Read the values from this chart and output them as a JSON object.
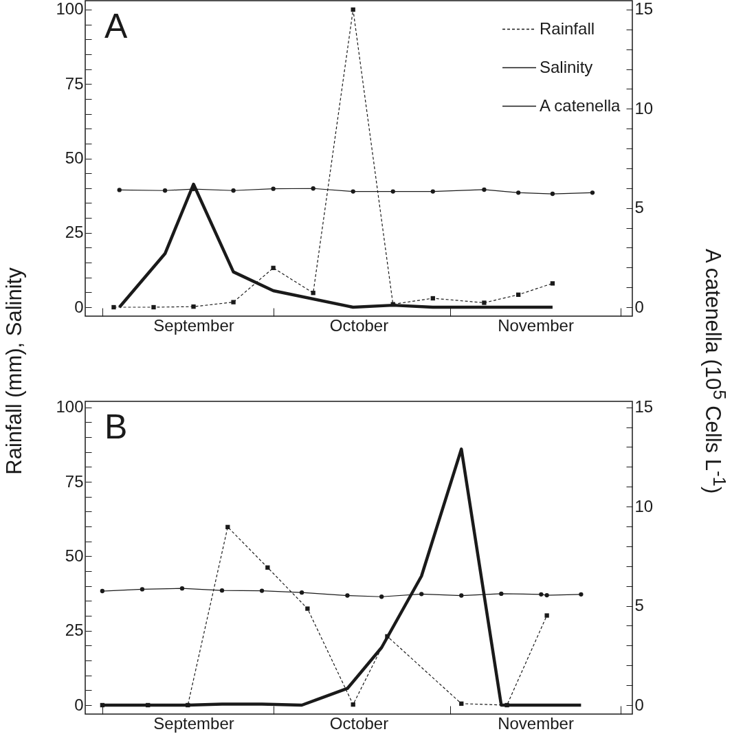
{
  "chart_data": [
    {
      "type": "line",
      "title": "A",
      "ylabel": "Rainfall (mm), Salinity",
      "y2label": "A catenella (10$^{5}$ Cells L$^{-1}$)",
      "legend": "top right",
      "xlim": [
        "--08-29",
        "--12-03"
      ],
      "xticks": [
        {
          "value": "--09-01",
          "label": null
        },
        {
          "value": "--09-17",
          "label": "September"
        },
        {
          "value": "--10-01",
          "label": null
        },
        {
          "value": "--10-16",
          "label": "October"
        },
        {
          "value": "--11-01",
          "label": null
        },
        {
          "value": "--11-16",
          "label": "November"
        },
        {
          "value": "--12-01",
          "label": null
        }
      ],
      "ylim": [
        -3,
        103
      ],
      "yticks": [
        0,
        {
          "value": 5,
          "label": null
        },
        {
          "value": 10,
          "label": null
        },
        {
          "value": 15,
          "label": null
        },
        {
          "value": 20,
          "label": null
        },
        25,
        {
          "value": 30,
          "label": null
        },
        {
          "value": 35,
          "label": null
        },
        {
          "value": 40,
          "label": null
        },
        {
          "value": 45,
          "label": null
        },
        50,
        {
          "value": 55,
          "label": null
        },
        {
          "value": 60,
          "label": null
        },
        {
          "value": 65,
          "label": null
        },
        {
          "value": 70,
          "label": null
        },
        75,
        {
          "value": 80,
          "label": null
        },
        {
          "value": 85,
          "label": null
        },
        {
          "value": 90,
          "label": null
        },
        {
          "value": 95,
          "label": null
        },
        100
      ],
      "y2lim": [
        -0.45,
        15.45
      ],
      "y2ticks": [
        0,
        {
          "value": 1,
          "label": null
        },
        {
          "value": 2,
          "label": null
        },
        {
          "value": 3,
          "label": null
        },
        {
          "value": 4,
          "label": null
        },
        5,
        {
          "value": 6,
          "label": null
        },
        {
          "value": 7,
          "label": null
        },
        {
          "value": 8,
          "label": null
        },
        {
          "value": 9,
          "label": null
        },
        10,
        {
          "value": 11,
          "label": null
        },
        {
          "value": 12,
          "label": null
        },
        {
          "value": 13,
          "label": null
        },
        {
          "value": 14,
          "label": null
        },
        15
      ],
      "series": [
        {
          "name": "Rainfall",
          "color": "#1a1a1a",
          "marker": "square",
          "line_style": "dashed",
          "x": [
            "--09-03",
            "--09-10",
            "--09-17",
            "--09-24",
            "--10-01",
            "--10-08",
            "--10-15",
            "--10-22",
            "--10-29",
            "--11-07",
            "--11-13",
            "--11-19"
          ],
          "values": [
            0,
            0,
            0.2,
            1.7,
            13.2,
            4.8,
            100,
            1.0,
            3.0,
            1.5,
            4.2,
            8.0
          ]
        },
        {
          "name": "Salinity",
          "color": "#1a1a1a",
          "marker": "circle",
          "line_style": "solid",
          "x": [
            "--09-04",
            "--09-12",
            "--09-17",
            "--09-24",
            "--10-01",
            "--10-08",
            "--10-15",
            "--10-22",
            "--10-29",
            "--11-07",
            "--11-13",
            "--11-19",
            "--11-26"
          ],
          "values": [
            39.4,
            39.2,
            39.7,
            39.2,
            39.8,
            39.9,
            38.9,
            38.9,
            38.9,
            39.5,
            38.5,
            38.1,
            38.5
          ]
        },
        {
          "name": "A catenella",
          "color": "#1a1a1a",
          "marker": "none",
          "line_style": "solid",
          "axis": "y2",
          "x": [
            "--09-04",
            "--09-12",
            "--09-17",
            "--09-24",
            "--10-01",
            "--10-15",
            "--10-22",
            "--10-29",
            "--11-19"
          ],
          "values": [
            0,
            2.7,
            6.2,
            1.78,
            0.83,
            0,
            0.1,
            0,
            0
          ]
        }
      ]
    },
    {
      "type": "line",
      "title": "B",
      "legend": false,
      "xlim": [
        "--08-29",
        "--12-03"
      ],
      "xticks": [
        {
          "value": "--09-01",
          "label": null
        },
        {
          "value": "--09-17",
          "label": "September"
        },
        {
          "value": "--10-01",
          "label": null
        },
        {
          "value": "--10-16",
          "label": "October"
        },
        {
          "value": "--11-01",
          "label": null
        },
        {
          "value": "--11-16",
          "label": "November"
        },
        {
          "value": "--12-01",
          "label": null
        }
      ],
      "ylim": [
        -3,
        102
      ],
      "yticks": [
        0,
        {
          "value": 5,
          "label": null
        },
        {
          "value": 10,
          "label": null
        },
        {
          "value": 15,
          "label": null
        },
        {
          "value": 20,
          "label": null
        },
        25,
        {
          "value": 30,
          "label": null
        },
        {
          "value": 35,
          "label": null
        },
        {
          "value": 40,
          "label": null
        },
        {
          "value": 45,
          "label": null
        },
        50,
        {
          "value": 55,
          "label": null
        },
        {
          "value": 60,
          "label": null
        },
        {
          "value": 65,
          "label": null
        },
        {
          "value": 70,
          "label": null
        },
        75,
        {
          "value": 80,
          "label": null
        },
        {
          "value": 85,
          "label": null
        },
        {
          "value": 90,
          "label": null
        },
        {
          "value": 95,
          "label": null
        },
        100
      ],
      "y2lim": [
        -0.45,
        15.3
      ],
      "y2ticks": [
        0,
        {
          "value": 1,
          "label": null
        },
        {
          "value": 2,
          "label": null
        },
        {
          "value": 3,
          "label": null
        },
        {
          "value": 4,
          "label": null
        },
        5,
        {
          "value": 6,
          "label": null
        },
        {
          "value": 7,
          "label": null
        },
        {
          "value": 8,
          "label": null
        },
        {
          "value": 9,
          "label": null
        },
        10,
        {
          "value": 11,
          "label": null
        },
        {
          "value": 12,
          "label": null
        },
        {
          "value": 13,
          "label": null
        },
        {
          "value": 14,
          "label": null
        },
        15
      ],
      "series": [
        {
          "color": "#1a1a1a",
          "marker": "square",
          "line_style": "dashed",
          "x": [
            "--09-01",
            "--09-09",
            "--09-16",
            "--09-23",
            "--09-30",
            "--10-07",
            "--10-15",
            "--10-21",
            "--11-03",
            "--11-11",
            "--11-18"
          ],
          "values": [
            0,
            0,
            0,
            59.8,
            46.2,
            32.4,
            0.2,
            23.1,
            0.5,
            0,
            30.1
          ]
        },
        {
          "color": "#1a1a1a",
          "marker": "circle",
          "line_style": "solid",
          "x": [
            "--09-01",
            "--09-08",
            "--09-15",
            "--09-22",
            "--09-29",
            "--10-06",
            "--10-14",
            "--10-20",
            "--10-27",
            "--11-03",
            "--11-10",
            "--11-17",
            "--11-18",
            "--11-24"
          ],
          "values": [
            38.3,
            38.9,
            39.2,
            38.5,
            38.4,
            37.8,
            36.8,
            36.4,
            37.3,
            36.8,
            37.4,
            37.2,
            36.9,
            37.2
          ]
        },
        {
          "color": "#1a1a1a",
          "marker": "none",
          "line_style": "solid",
          "axis": "y2",
          "x": [
            "--09-01",
            "--09-16",
            "--09-22",
            "--09-29",
            "--10-06",
            "--10-14",
            "--10-20",
            "--10-27",
            "--11-03",
            "--11-10",
            "--11-24"
          ],
          "values": [
            0,
            0,
            0.05,
            0.05,
            0,
            0.84,
            2.9,
            6.5,
            12.9,
            0,
            0
          ]
        }
      ]
    }
  ]
}
